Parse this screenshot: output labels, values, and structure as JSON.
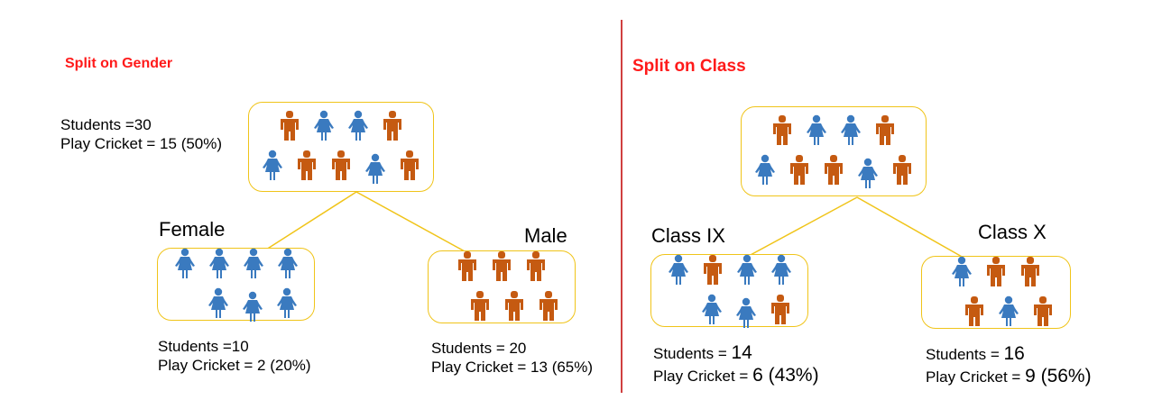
{
  "colors": {
    "female": "#3a7abf",
    "male": "#c55a11",
    "box_border": "#f0c419",
    "divider": "#c00000",
    "title": "#ff1a1a"
  },
  "left": {
    "title": "Split on Gender",
    "root": {
      "students": "Students =30",
      "cricket": "Play Cricket = 15 (50%)",
      "icons": [
        "male",
        "female",
        "female",
        "male",
        "female",
        "male",
        "male",
        "female",
        "male"
      ]
    },
    "children": [
      {
        "label": "Female",
        "students": "Students =10",
        "cricket": "Play Cricket = 2 (20%)",
        "icons": [
          "female",
          "female",
          "female",
          "female",
          "female",
          "female",
          "female"
        ]
      },
      {
        "label": "Male",
        "students": "Students = 20",
        "cricket": "Play Cricket = 13 (65%)",
        "icons": [
          "male",
          "male",
          "male",
          "male",
          "male",
          "male"
        ]
      }
    ]
  },
  "right": {
    "title": "Split on Class",
    "root": {
      "icons": [
        "male",
        "female",
        "female",
        "male",
        "female",
        "male",
        "male",
        "female",
        "male"
      ]
    },
    "children": [
      {
        "label": "Class IX",
        "students_prefix": "Students = ",
        "students_value": "14",
        "cricket_prefix": "Play Cricket = ",
        "cricket_value": "6 (43%)",
        "icons": [
          "female",
          "male",
          "female",
          "female",
          "female",
          "female",
          "male"
        ]
      },
      {
        "label": "Class X",
        "students_prefix": "Students = ",
        "students_value": "16",
        "cricket_prefix": "Play Cricket = ",
        "cricket_value": "9 (56%)",
        "icons": [
          "female",
          "male",
          "male",
          "male",
          "female",
          "male"
        ]
      }
    ]
  }
}
